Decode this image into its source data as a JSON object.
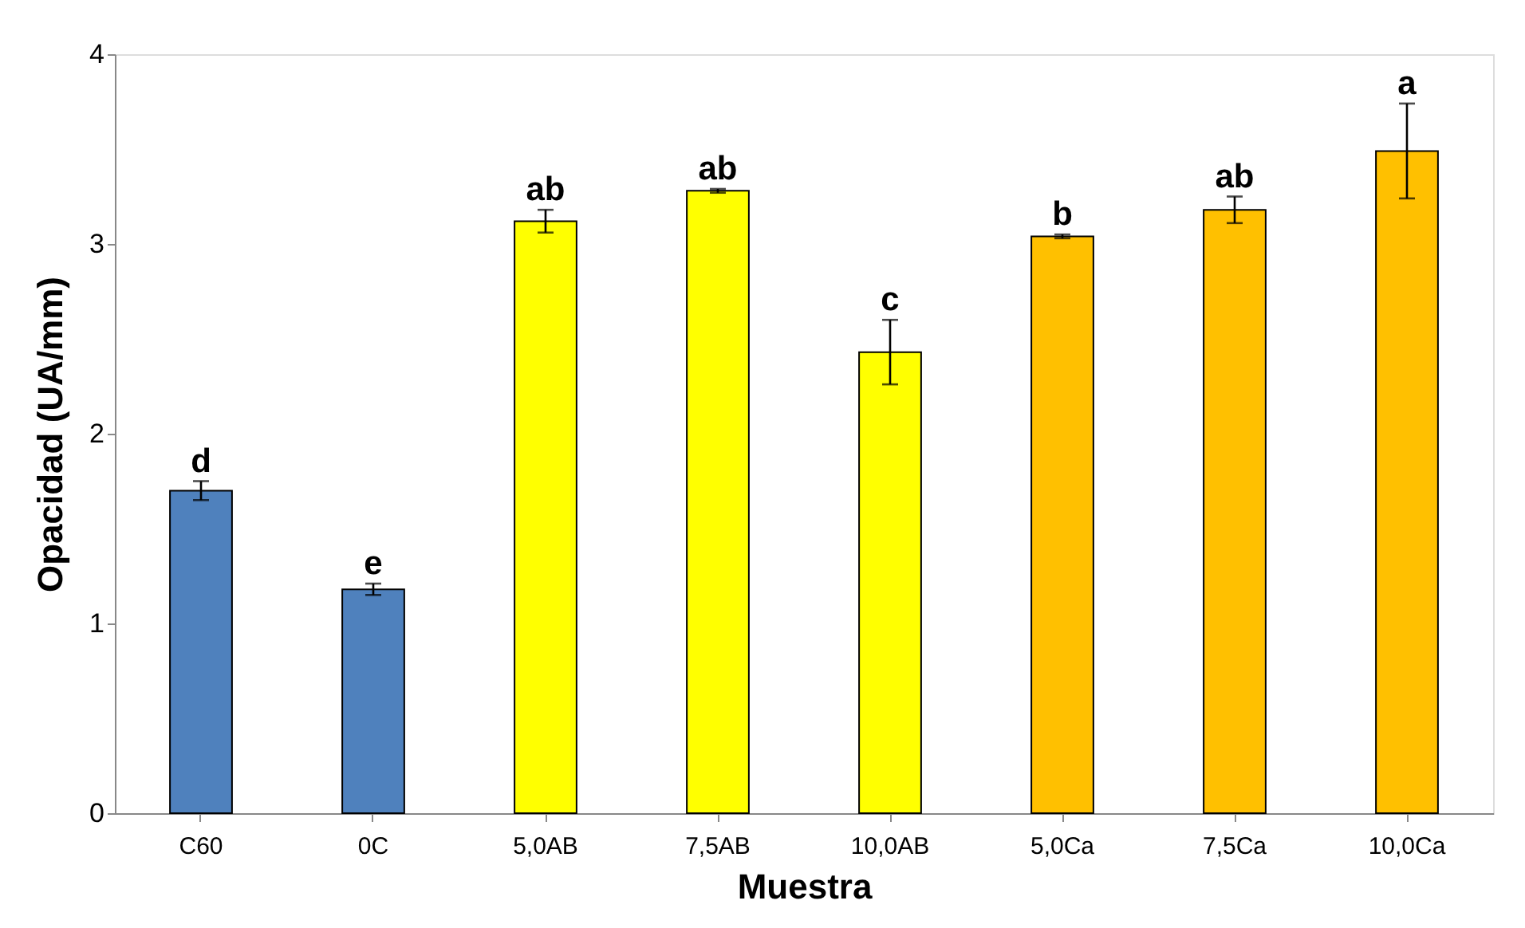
{
  "chart_data": {
    "type": "bar",
    "xlabel": "Muestra",
    "ylabel": "Opacidad (UA/mm)",
    "categories": [
      "C60",
      "0C",
      "5,0AB",
      "7,5AB",
      "10,0AB",
      "5,0Ca",
      "7,5Ca",
      "10,0Ca"
    ],
    "values": [
      1.7,
      1.18,
      3.12,
      3.28,
      2.43,
      3.04,
      3.18,
      3.49
    ],
    "errors": [
      0.05,
      0.03,
      0.06,
      0.01,
      0.17,
      0.01,
      0.07,
      0.25
    ],
    "colors": [
      "#4f81bd",
      "#4f81bd",
      "#ffff00",
      "#ffff00",
      "#ffff00",
      "#ffc000",
      "#ffc000",
      "#ffc000"
    ],
    "ylim": [
      0,
      4
    ],
    "yticks": [
      0,
      1,
      2,
      3,
      4
    ],
    "grid": false,
    "annotations": [
      {
        "text": "d",
        "x": "C60",
        "y": 1.75
      },
      {
        "text": "e",
        "x": "0C",
        "y": 1.21
      },
      {
        "text": "ab",
        "x": "5,0AB",
        "y": 3.18
      },
      {
        "text": "ab",
        "x": "7,5AB",
        "y": 3.29
      },
      {
        "text": "c",
        "x": "10,0AB",
        "y": 2.6
      },
      {
        "text": "b",
        "x": "5,0Ca",
        "y": 3.05
      },
      {
        "text": "ab",
        "x": "7,5Ca",
        "y": 3.25
      },
      {
        "text": "a",
        "x": "10,0Ca",
        "y": 3.74
      }
    ]
  }
}
